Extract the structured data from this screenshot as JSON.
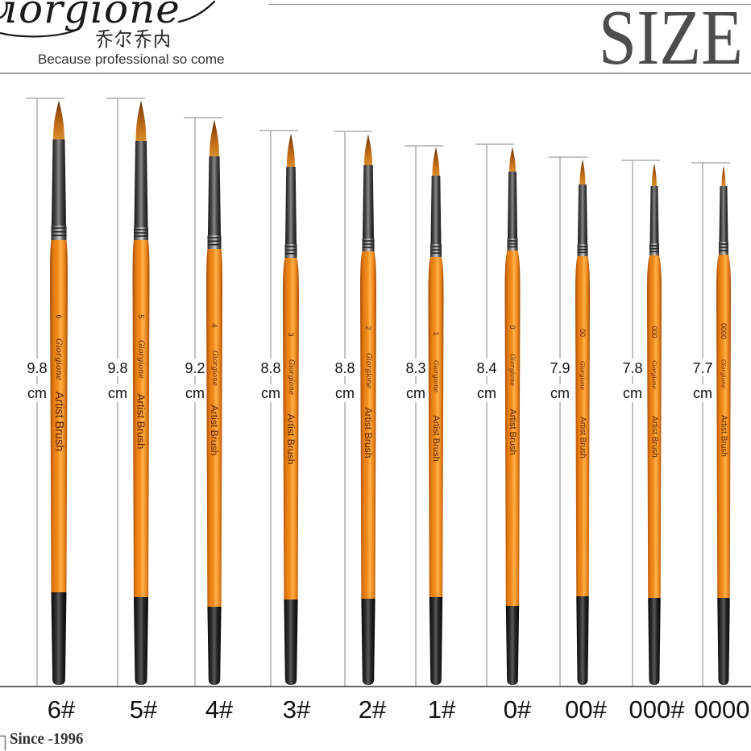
{
  "brand": {
    "logo_text": "iorgione",
    "chinese_name": "乔尔乔内",
    "tagline": "Because professional so come",
    "since": "Since -1996"
  },
  "heading": "SIZE",
  "handle_print": {
    "logo": "Giorgione",
    "text": "Artist Brush"
  },
  "brushes": [
    {
      "size_label": "6#",
      "handle_number": "6",
      "length": "9.8",
      "unit": "cm"
    },
    {
      "size_label": "5#",
      "handle_number": "5",
      "length": "9.8",
      "unit": "cm"
    },
    {
      "size_label": "4#",
      "handle_number": "4",
      "length": "9.2",
      "unit": "cm"
    },
    {
      "size_label": "3#",
      "handle_number": "3",
      "length": "8.8",
      "unit": "cm"
    },
    {
      "size_label": "2#",
      "handle_number": "2",
      "length": "8.8",
      "unit": "cm"
    },
    {
      "size_label": "1#",
      "handle_number": "1",
      "length": "8.3",
      "unit": "cm"
    },
    {
      "size_label": "0#",
      "handle_number": "0",
      "length": "8.4",
      "unit": "cm"
    },
    {
      "size_label": "00#",
      "handle_number": "00",
      "length": "7.9",
      "unit": "cm"
    },
    {
      "size_label": "000#",
      "handle_number": "000",
      "length": "7.8",
      "unit": "cm"
    },
    {
      "size_label": "0000",
      "handle_number": "0000",
      "length": "7.7",
      "unit": "cm"
    }
  ],
  "colors": {
    "heading": "#4d4d4d",
    "label_text": "#111111",
    "handle_orange": "#f28c1c",
    "bristle": "#c9741a",
    "measure_line": "#adadad",
    "handle_print": "#5b2407"
  }
}
